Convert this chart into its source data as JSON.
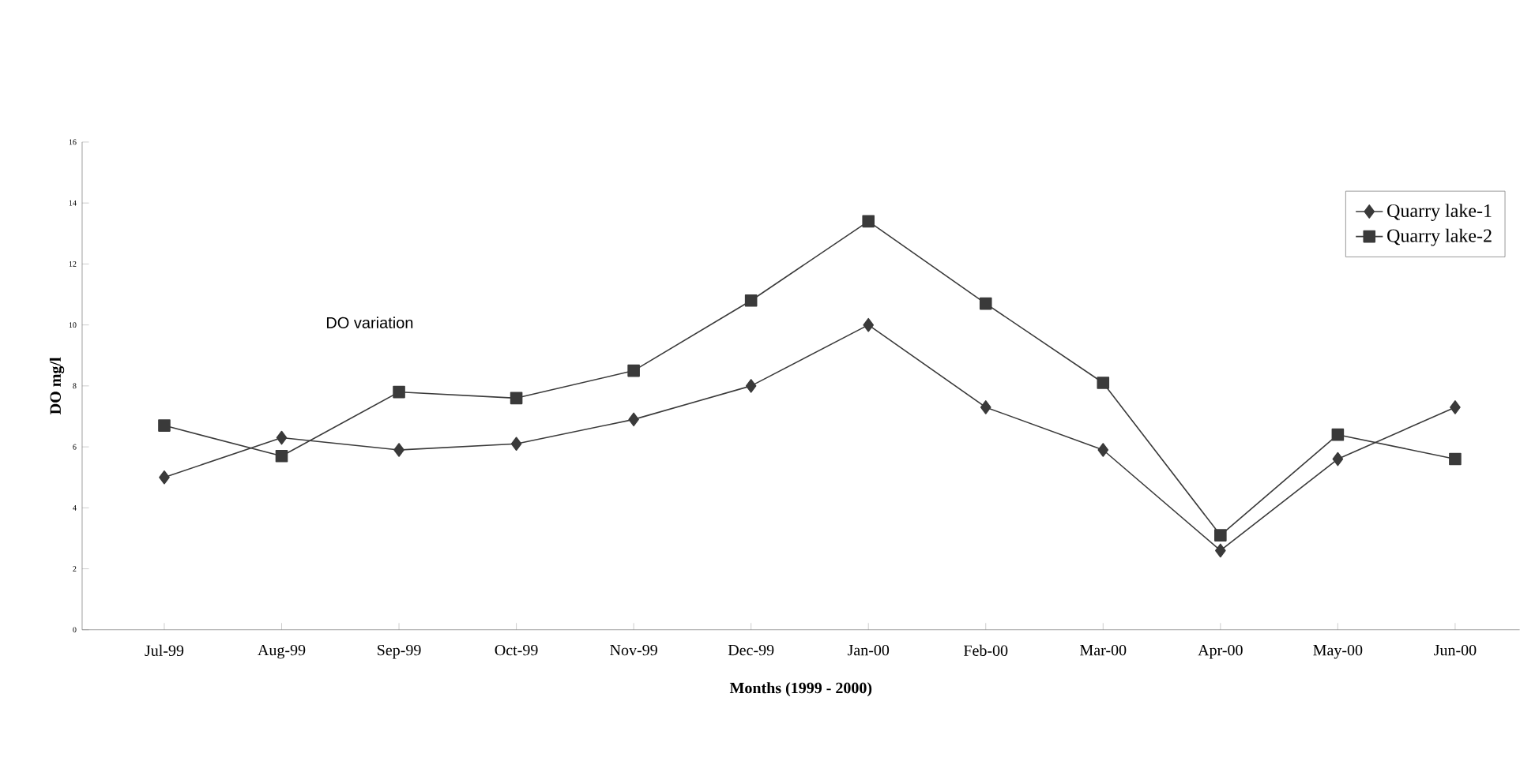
{
  "chart_data": {
    "type": "line",
    "xlabel": "Months (1999 - 2000)",
    "ylabel": "DO mg/l",
    "annotations": [
      "DO variation"
    ],
    "categories": [
      "Jul-99",
      "Aug-99",
      "Sep-99",
      "Oct-99",
      "Nov-99",
      "Dec-99",
      "Jan-00",
      "Feb-00",
      "Mar-00",
      "Apr-00",
      "May-00",
      "Jun-00"
    ],
    "series": [
      {
        "name": "Quarry lake-1",
        "color": "#3a3a3a",
        "marker": "diamond",
        "values": [
          5.0,
          6.3,
          5.9,
          6.1,
          6.9,
          8.0,
          10.0,
          7.3,
          5.9,
          2.6,
          5.6,
          7.3
        ]
      },
      {
        "name": "Quarry lake-2",
        "color": "#3a3a3a",
        "marker": "square",
        "values": [
          6.7,
          5.7,
          7.8,
          7.6,
          8.5,
          10.8,
          13.4,
          10.7,
          8.1,
          3.1,
          6.4,
          5.6
        ]
      }
    ],
    "ylim": [
      0,
      16
    ],
    "yticks": [
      0,
      2,
      4,
      6,
      8,
      10,
      12,
      14,
      16
    ],
    "grid": false,
    "legend": "top right",
    "line_style": "solid"
  }
}
